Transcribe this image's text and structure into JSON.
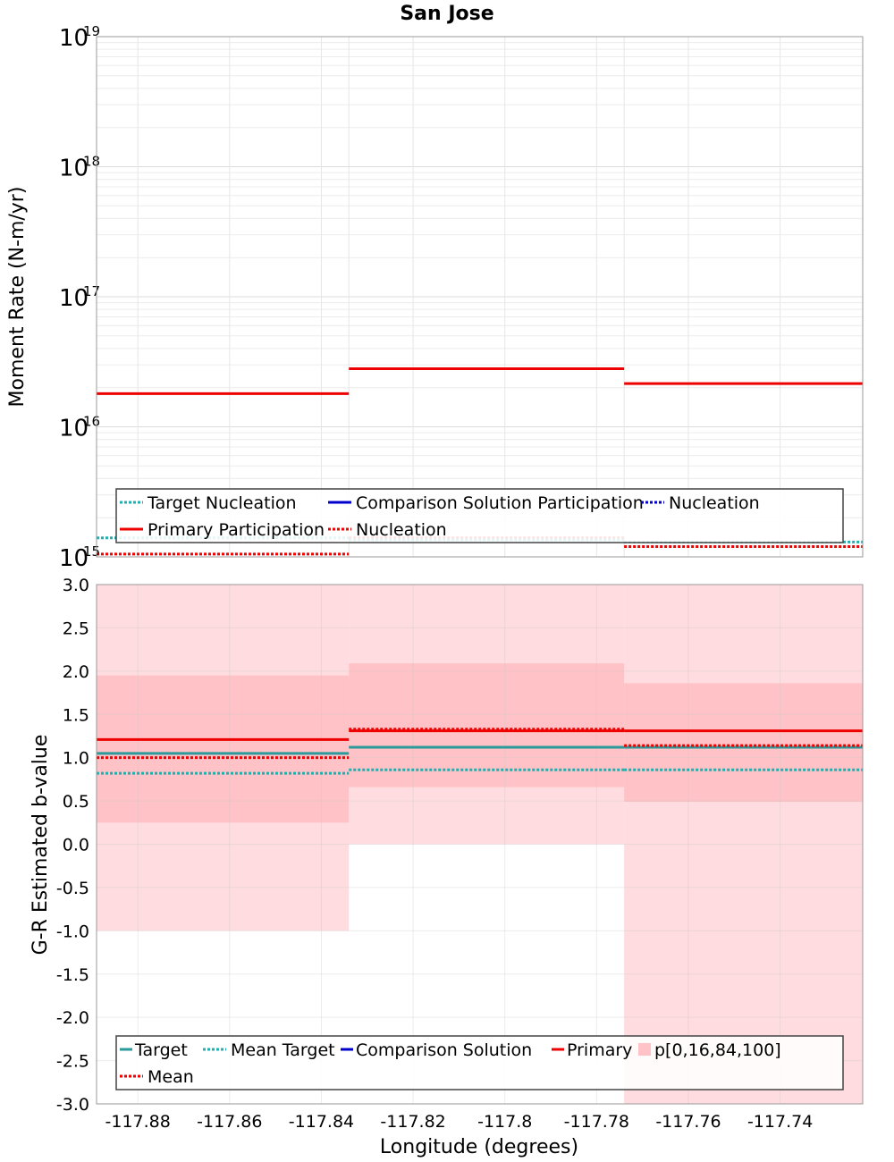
{
  "figure": {
    "title": "San Jose",
    "xlabel": "Longitude (degrees)"
  },
  "colors": {
    "target": "#2a9a9a",
    "mean_target": "#20b0b0",
    "comparison": "#0000cc",
    "primary": "#ee0000",
    "band_outer": "#ffdcdf",
    "band_inner": "#ffc2c6",
    "grid": "#e6e6e6"
  },
  "chart_data": [
    {
      "type": "line",
      "subtype": "step",
      "title": "San Jose",
      "xlabel": "",
      "ylabel": "Moment Rate (N-m/yr)",
      "y_scale": "log",
      "ylim": [
        1000000000000000.0,
        1e+19
      ],
      "xlim": [
        -117.889,
        -117.722
      ],
      "grid": true,
      "legend_placement": "bottom",
      "y_tick_exponents": [
        "15",
        "16",
        "17",
        "18",
        "19"
      ],
      "bins": [
        [
          -117.889,
          -117.834
        ],
        [
          -117.834,
          -117.774
        ],
        [
          -117.774,
          -117.722
        ]
      ],
      "series": [
        {
          "name": "Primary Participation",
          "style": "solid",
          "color": "#ee0000",
          "values": [
            1.8e+16,
            2.8e+16,
            2.15e+16
          ]
        },
        {
          "name": "Nucleation",
          "style": "dotted",
          "color": "#ee0000",
          "values": [
            1050000000000000.0,
            1400000000000000.0,
            1200000000000000.0
          ]
        },
        {
          "name": "Target Nucleation",
          "style": "dotted",
          "color": "#20b0b0",
          "values": [
            1400000000000000.0,
            1350000000000000.0,
            1300000000000000.0
          ]
        }
      ],
      "legend": [
        {
          "label": "Target Nucleation",
          "style": "dotted",
          "color": "#20b0b0"
        },
        {
          "label": "Comparison Solution Participation",
          "style": "solid",
          "color": "#0000cc"
        },
        {
          "label": "Nucleation",
          "style": "dotted",
          "color": "#0000cc"
        },
        {
          "label": "Primary Participation",
          "style": "solid",
          "color": "#ee0000"
        },
        {
          "label": "Nucleation",
          "style": "dotted",
          "color": "#ee0000"
        }
      ]
    },
    {
      "type": "line",
      "subtype": "step",
      "title": "",
      "xlabel": "Longitude (degrees)",
      "ylabel": "G-R Estimated b-value",
      "ylim": [
        -3.0,
        3.0
      ],
      "xlim": [
        -117.889,
        -117.722
      ],
      "grid": true,
      "legend_placement": "bottom",
      "y_ticks": [
        "3.0",
        "2.5",
        "2.0",
        "1.5",
        "1.0",
        "0.5",
        "0.0",
        "-0.5",
        "-1.0",
        "-1.5",
        "-2.0",
        "-2.5",
        "-3.0"
      ],
      "x_ticks": [
        "-117.88",
        "-117.86",
        "-117.84",
        "-117.82",
        "-117.8",
        "-117.78",
        "-117.76",
        "-117.74"
      ],
      "bins": [
        [
          -117.889,
          -117.834
        ],
        [
          -117.834,
          -117.774
        ],
        [
          -117.774,
          -117.722
        ]
      ],
      "bands": [
        {
          "name": "p[0,100]",
          "low": [
            -1.0,
            0.0,
            -3.0
          ],
          "high": [
            3.0,
            3.0,
            3.0
          ]
        },
        {
          "name": "p[16,84]",
          "low": [
            0.25,
            0.66,
            0.49
          ],
          "high": [
            1.95,
            2.09,
            1.86
          ]
        }
      ],
      "series": [
        {
          "name": "Target",
          "style": "solid",
          "color": "#2a9a9a",
          "values": [
            1.05,
            1.12,
            1.12
          ]
        },
        {
          "name": "Mean Target",
          "style": "dotted",
          "color": "#20b0b0",
          "values": [
            0.82,
            0.86,
            0.86
          ]
        },
        {
          "name": "Primary",
          "style": "solid",
          "color": "#ee0000",
          "values": [
            1.21,
            1.31,
            1.31
          ]
        },
        {
          "name": "Mean",
          "style": "dotted",
          "color": "#ee0000",
          "values": [
            1.0,
            1.33,
            1.14
          ]
        }
      ],
      "legend": [
        {
          "label": "Target",
          "style": "solid",
          "color": "#2a9a9a"
        },
        {
          "label": "Mean Target",
          "style": "dotted",
          "color": "#20b0b0"
        },
        {
          "label": "Comparison Solution",
          "style": "solid",
          "color": "#0000cc"
        },
        {
          "label": "Primary",
          "style": "solid",
          "color": "#ee0000"
        },
        {
          "label": "p[0,16,84,100]",
          "style": "box",
          "color": "#ffc2c6"
        },
        {
          "label": "Mean",
          "style": "dotted",
          "color": "#ee0000"
        }
      ]
    }
  ]
}
